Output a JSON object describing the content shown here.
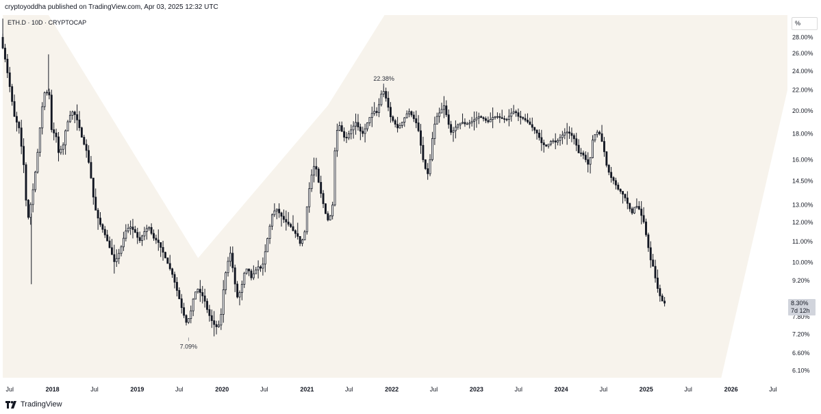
{
  "header": {
    "publisher_line": "cryptoyoddha published on TradingView.com, Apr 03, 2025 12:32 UTC"
  },
  "chart_title": "ETH.D · 10D · CRYPTOCAP",
  "scale_button": "%",
  "footer": {
    "brand": "TradingView"
  },
  "colors": {
    "background": "#ffffff",
    "plot_band": "#f7f3ec",
    "candle": "#131722",
    "price_label_bg": "#d1d4dc"
  },
  "icons": {
    "brand_logo": "tradingview-logo-icon"
  },
  "chart_data": {
    "type": "candlestick",
    "symbol": "ETH.D",
    "interval": "10D",
    "exchange": "CRYPTOCAP",
    "y_scale": "log",
    "y_unit": "%",
    "ylim": [
      5.9,
      31.0
    ],
    "y_ticks": [
      {
        "value": 28.0,
        "label": "28.00%"
      },
      {
        "value": 26.0,
        "label": "26.00%"
      },
      {
        "value": 24.0,
        "label": "24.00%"
      },
      {
        "value": 22.0,
        "label": "22.00%"
      },
      {
        "value": 20.0,
        "label": "20.00%"
      },
      {
        "value": 18.0,
        "label": "18.00%"
      },
      {
        "value": 16.0,
        "label": "16.00%"
      },
      {
        "value": 14.5,
        "label": "14.50%"
      },
      {
        "value": 13.0,
        "label": "13.00%"
      },
      {
        "value": 12.0,
        "label": "12.00%"
      },
      {
        "value": 11.0,
        "label": "11.00%"
      },
      {
        "value": 10.0,
        "label": "10.00%"
      },
      {
        "value": 9.2,
        "label": "9.20%"
      },
      {
        "value": 7.8,
        "label": "7.80%"
      },
      {
        "value": 7.2,
        "label": "7.20%"
      },
      {
        "value": 6.6,
        "label": "6.60%"
      },
      {
        "value": 6.1,
        "label": "6.10%"
      }
    ],
    "xlim": [
      "2017-05-20",
      "2026-09-01"
    ],
    "x_ticks": [
      {
        "date": "2017-07-01",
        "label": "Jul",
        "major": false
      },
      {
        "date": "2018-01-01",
        "label": "2018",
        "major": true
      },
      {
        "date": "2018-07-01",
        "label": "Jul",
        "major": false
      },
      {
        "date": "2019-01-01",
        "label": "2019",
        "major": true
      },
      {
        "date": "2019-07-01",
        "label": "Jul",
        "major": false
      },
      {
        "date": "2020-01-01",
        "label": "2020",
        "major": true
      },
      {
        "date": "2020-07-01",
        "label": "Jul",
        "major": false
      },
      {
        "date": "2021-01-01",
        "label": "2021",
        "major": true
      },
      {
        "date": "2021-07-01",
        "label": "Jul",
        "major": false
      },
      {
        "date": "2022-01-01",
        "label": "2022",
        "major": true
      },
      {
        "date": "2022-07-01",
        "label": "Jul",
        "major": false
      },
      {
        "date": "2023-01-01",
        "label": "2023",
        "major": true
      },
      {
        "date": "2023-07-01",
        "label": "Jul",
        "major": false
      },
      {
        "date": "2024-01-01",
        "label": "2024",
        "major": true
      },
      {
        "date": "2024-07-01",
        "label": "Jul",
        "major": false
      },
      {
        "date": "2025-01-01",
        "label": "2025",
        "major": true
      },
      {
        "date": "2025-07-01",
        "label": "Jul",
        "major": false
      },
      {
        "date": "2026-01-01",
        "label": "2026",
        "major": true
      },
      {
        "date": "2026-07-01",
        "label": "Jul",
        "major": false
      }
    ],
    "close_path": [
      [
        "2017-06-01",
        28.0
      ],
      [
        "2017-06-20",
        25.5
      ],
      [
        "2017-07-10",
        22.5
      ],
      [
        "2017-07-31",
        19.5
      ],
      [
        "2017-08-20",
        18.5
      ],
      [
        "2017-09-10",
        15.5
      ],
      [
        "2017-09-25",
        12.0
      ],
      [
        "2017-10-15",
        13.5
      ],
      [
        "2017-11-05",
        16.0
      ],
      [
        "2017-11-25",
        20.0
      ],
      [
        "2017-12-10",
        22.0
      ],
      [
        "2017-12-28",
        21.5
      ],
      [
        "2018-01-10",
        17.5
      ],
      [
        "2018-01-22",
        18.5
      ],
      [
        "2018-02-05",
        16.5
      ],
      [
        "2018-02-25",
        17.0
      ],
      [
        "2018-03-10",
        18.5
      ],
      [
        "2018-03-25",
        19.5
      ],
      [
        "2018-04-10",
        20.0
      ],
      [
        "2018-05-01",
        19.0
      ],
      [
        "2018-05-20",
        17.5
      ],
      [
        "2018-06-10",
        16.5
      ],
      [
        "2018-06-28",
        14.5
      ],
      [
        "2018-07-10",
        13.0
      ],
      [
        "2018-07-20",
        12.5
      ],
      [
        "2018-08-01",
        12.0
      ],
      [
        "2018-08-20",
        11.5
      ],
      [
        "2018-09-05",
        11.0
      ],
      [
        "2018-09-20",
        10.5
      ],
      [
        "2018-10-05",
        10.0
      ],
      [
        "2018-10-20",
        10.3
      ],
      [
        "2018-11-05",
        10.8
      ],
      [
        "2018-11-20",
        11.5
      ],
      [
        "2018-12-10",
        11.8
      ],
      [
        "2019-01-01",
        11.5
      ],
      [
        "2019-01-20",
        11.0
      ],
      [
        "2019-02-10",
        11.5
      ],
      [
        "2019-03-01",
        11.8
      ],
      [
        "2019-03-20",
        11.2
      ],
      [
        "2019-04-10",
        11.0
      ],
      [
        "2019-05-01",
        10.5
      ],
      [
        "2019-05-20",
        10.0
      ],
      [
        "2019-06-10",
        9.5
      ],
      [
        "2019-06-25",
        9.0
      ],
      [
        "2019-07-10",
        8.5
      ],
      [
        "2019-07-25",
        8.0
      ],
      [
        "2019-08-10",
        7.6
      ],
      [
        "2019-08-25",
        7.8
      ],
      [
        "2019-09-10",
        8.5
      ],
      [
        "2019-09-25",
        8.9
      ],
      [
        "2019-10-10",
        8.7
      ],
      [
        "2019-10-25",
        8.5
      ],
      [
        "2019-11-10",
        8.0
      ],
      [
        "2019-11-25",
        7.7
      ],
      [
        "2019-12-10",
        7.5
      ],
      [
        "2019-12-25",
        7.4
      ],
      [
        "2020-01-10",
        8.0
      ],
      [
        "2020-01-20",
        9.2
      ],
      [
        "2020-02-05",
        10.0
      ],
      [
        "2020-02-15",
        10.5
      ],
      [
        "2020-03-01",
        9.5
      ],
      [
        "2020-03-15",
        8.5
      ],
      [
        "2020-04-01",
        8.8
      ],
      [
        "2020-04-15",
        9.5
      ],
      [
        "2020-05-01",
        9.8
      ],
      [
        "2020-05-15",
        9.3
      ],
      [
        "2020-06-01",
        9.6
      ],
      [
        "2020-06-15",
        9.8
      ],
      [
        "2020-07-01",
        9.7
      ],
      [
        "2020-07-15",
        10.5
      ],
      [
        "2020-07-30",
        11.5
      ],
      [
        "2020-08-15",
        12.5
      ],
      [
        "2020-09-01",
        12.8
      ],
      [
        "2020-09-15",
        12.5
      ],
      [
        "2020-10-01",
        12.2
      ],
      [
        "2020-10-15",
        12.0
      ],
      [
        "2020-11-01",
        11.8
      ],
      [
        "2020-11-15",
        11.5
      ],
      [
        "2020-12-01",
        11.3
      ],
      [
        "2020-12-15",
        10.8
      ],
      [
        "2021-01-01",
        11.5
      ],
      [
        "2021-01-15",
        13.5
      ],
      [
        "2021-02-01",
        15.0
      ],
      [
        "2021-02-15",
        15.8
      ],
      [
        "2021-03-01",
        14.5
      ],
      [
        "2021-03-15",
        13.5
      ],
      [
        "2021-04-01",
        12.5
      ],
      [
        "2021-04-15",
        12.0
      ],
      [
        "2021-05-01",
        13.0
      ],
      [
        "2021-05-10",
        16.5
      ],
      [
        "2021-05-25",
        19.0
      ],
      [
        "2021-06-10",
        18.2
      ],
      [
        "2021-06-25",
        17.5
      ],
      [
        "2021-07-10",
        18.0
      ],
      [
        "2021-07-25",
        18.5
      ],
      [
        "2021-08-10",
        19.0
      ],
      [
        "2021-08-25",
        18.3
      ],
      [
        "2021-09-10",
        18.0
      ],
      [
        "2021-09-25",
        18.8
      ],
      [
        "2021-10-10",
        19.5
      ],
      [
        "2021-10-25",
        20.0
      ],
      [
        "2021-11-10",
        19.8
      ],
      [
        "2021-11-25",
        21.5
      ],
      [
        "2021-12-05",
        22.0
      ],
      [
        "2021-12-20",
        21.0
      ],
      [
        "2022-01-05",
        19.5
      ],
      [
        "2022-01-20",
        19.0
      ],
      [
        "2022-02-05",
        18.5
      ],
      [
        "2022-02-20",
        18.8
      ],
      [
        "2022-03-10",
        19.5
      ],
      [
        "2022-03-25",
        20.0
      ],
      [
        "2022-04-10",
        19.5
      ],
      [
        "2022-04-25",
        19.0
      ],
      [
        "2022-05-10",
        18.0
      ],
      [
        "2022-05-20",
        16.5
      ],
      [
        "2022-06-01",
        15.5
      ],
      [
        "2022-06-15",
        15.0
      ],
      [
        "2022-06-25",
        16.0
      ],
      [
        "2022-07-10",
        18.5
      ],
      [
        "2022-07-25",
        19.5
      ],
      [
        "2022-08-10",
        20.0
      ],
      [
        "2022-08-25",
        20.5
      ],
      [
        "2022-09-10",
        19.0
      ],
      [
        "2022-09-25",
        18.0
      ],
      [
        "2022-10-10",
        18.5
      ],
      [
        "2022-10-25",
        18.8
      ],
      [
        "2022-11-10",
        19.0
      ],
      [
        "2022-11-25",
        18.8
      ],
      [
        "2022-12-10",
        18.9
      ],
      [
        "2023-01-01",
        19.2
      ],
      [
        "2023-01-20",
        19.5
      ],
      [
        "2023-02-10",
        19.3
      ],
      [
        "2023-03-01",
        19.0
      ],
      [
        "2023-03-20",
        19.4
      ],
      [
        "2023-04-10",
        19.5
      ],
      [
        "2023-05-01",
        19.3
      ],
      [
        "2023-05-20",
        19.2
      ],
      [
        "2023-06-10",
        19.8
      ],
      [
        "2023-06-25",
        20.0
      ],
      [
        "2023-07-10",
        19.5
      ],
      [
        "2023-08-01",
        19.3
      ],
      [
        "2023-08-20",
        19.0
      ],
      [
        "2023-09-10",
        18.5
      ],
      [
        "2023-10-01",
        18.0
      ],
      [
        "2023-10-20",
        17.2
      ],
      [
        "2023-11-10",
        17.0
      ],
      [
        "2023-12-01",
        17.5
      ],
      [
        "2023-12-20",
        17.3
      ],
      [
        "2024-01-10",
        17.8
      ],
      [
        "2024-02-01",
        18.2
      ],
      [
        "2024-02-20",
        18.0
      ],
      [
        "2024-03-10",
        17.5
      ],
      [
        "2024-03-25",
        16.5
      ],
      [
        "2024-04-10",
        16.5
      ],
      [
        "2024-04-25",
        16.0
      ],
      [
        "2024-05-10",
        15.5
      ],
      [
        "2024-05-25",
        17.5
      ],
      [
        "2024-06-10",
        18.2
      ],
      [
        "2024-06-25",
        18.0
      ],
      [
        "2024-07-10",
        17.0
      ],
      [
        "2024-07-25",
        15.5
      ],
      [
        "2024-08-10",
        14.8
      ],
      [
        "2024-08-25",
        14.5
      ],
      [
        "2024-09-10",
        14.0
      ],
      [
        "2024-09-25",
        13.8
      ],
      [
        "2024-10-10",
        13.5
      ],
      [
        "2024-10-25",
        13.0
      ],
      [
        "2024-11-10",
        12.5
      ],
      [
        "2024-11-25",
        13.0
      ],
      [
        "2024-12-10",
        12.8
      ],
      [
        "2025-01-01",
        12.0
      ],
      [
        "2025-01-15",
        11.0
      ],
      [
        "2025-02-01",
        10.0
      ],
      [
        "2025-02-10",
        9.8
      ],
      [
        "2025-02-25",
        9.0
      ],
      [
        "2025-03-10",
        8.6
      ],
      [
        "2025-03-25",
        8.3
      ]
    ],
    "annotations": [
      {
        "date": "2021-11-28",
        "value": 22.38,
        "label": "22.38%",
        "position": "above"
      },
      {
        "date": "2019-08-10",
        "value": 7.09,
        "label": "7.09%",
        "position": "below"
      }
    ],
    "price_marks": [
      {
        "date": "2017-06-01",
        "value": 30.5
      },
      {
        "date": "2017-10-02",
        "value": 9.05
      },
      {
        "date": "2017-12-15",
        "value": 25.9
      }
    ],
    "last_price": {
      "value": 8.3,
      "label": "8.30%",
      "countdown": "7d 12h"
    }
  }
}
